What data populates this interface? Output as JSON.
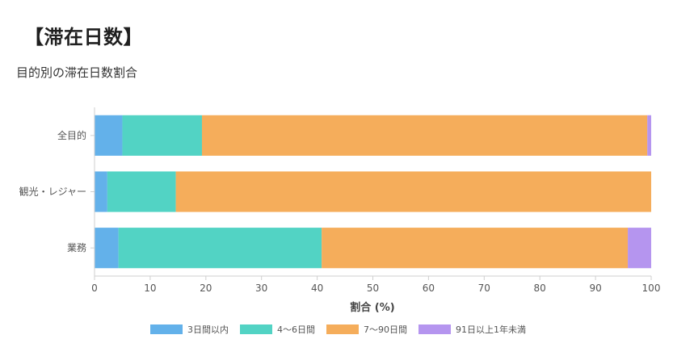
{
  "page": {
    "title": "【滞在日数】"
  },
  "chart_data": {
    "type": "bar",
    "orientation": "horizontal",
    "stacked": true,
    "title": "目的別の滞在日数割合",
    "xlabel": "割合 (%)",
    "ylabel": "",
    "xlim": [
      0,
      100
    ],
    "x_ticks": [
      0,
      10,
      20,
      30,
      40,
      50,
      60,
      70,
      80,
      90,
      100
    ],
    "grid": false,
    "legend_position": "bottom",
    "categories": [
      "全目的",
      "観光・レジャー",
      "業務"
    ],
    "series": [
      {
        "name": "3日間以内",
        "color": "#63b1ea",
        "values": [
          5.0,
          2.3,
          4.3
        ]
      },
      {
        "name": "4〜6日間",
        "color": "#52d3c4",
        "values": [
          14.3,
          12.3,
          36.5
        ]
      },
      {
        "name": "7〜90日間",
        "color": "#f5ad5b",
        "values": [
          80.0,
          85.4,
          55.0
        ]
      },
      {
        "name": "91日以上1年未満",
        "color": "#b595ef",
        "values": [
          0.7,
          0.0,
          4.2
        ]
      }
    ]
  }
}
